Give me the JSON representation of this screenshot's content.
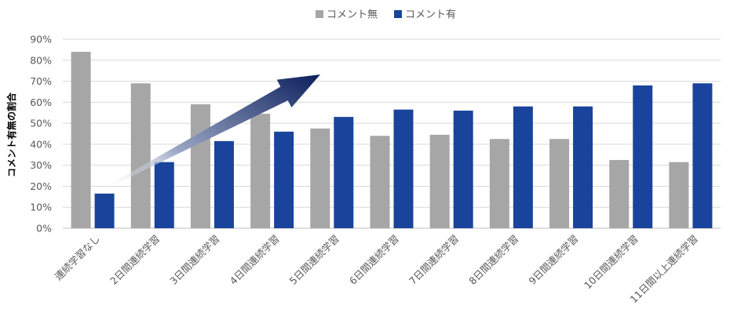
{
  "chart_data": {
    "type": "bar",
    "title": "",
    "xlabel": "",
    "ylabel": "コメント有無の割合",
    "ylim": [
      0,
      90
    ],
    "yticks": [
      "0%",
      "10%",
      "20%",
      "30%",
      "40%",
      "50%",
      "60%",
      "70%",
      "80%",
      "90%"
    ],
    "grid": true,
    "legend_position": "top",
    "categories": [
      "連続学習なし",
      "2日間連続学習",
      "3日間連続学習",
      "4日間連続学習",
      "5日間連続学習",
      "6日間連続学習",
      "7日間連続学習",
      "8日間連続学習",
      "9日間連続学習",
      "10日間連続学習",
      "11日間以上連続学習"
    ],
    "series": [
      {
        "name": "コメント無",
        "color": "#a6a6a6",
        "values": [
          84,
          69,
          59,
          54.5,
          47.5,
          44,
          44.5,
          42.5,
          42.5,
          32.5,
          31.5
        ]
      },
      {
        "name": "コメント有",
        "color": "#1a449b",
        "values": [
          16.5,
          31.5,
          41.5,
          46,
          53,
          56.5,
          56,
          58,
          58,
          68,
          69
        ]
      }
    ],
    "annotations": [
      {
        "type": "arrow",
        "description": "upward trend arrow",
        "color": "#0b1f5c"
      }
    ]
  }
}
